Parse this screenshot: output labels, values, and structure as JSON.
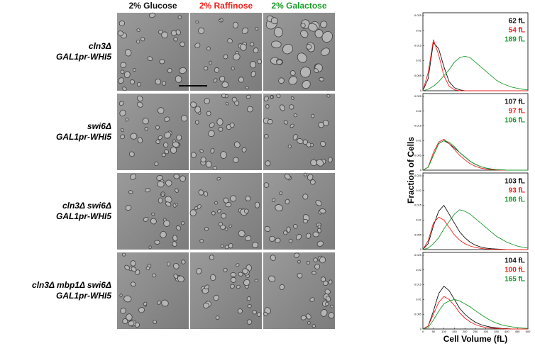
{
  "columns": [
    {
      "label": "2% Glucose",
      "color": "#111111"
    },
    {
      "label": "2% Raffinose",
      "color": "#e8231c"
    },
    {
      "label": "2% Galactose",
      "color": "#1a9a2a"
    }
  ],
  "rows": [
    {
      "lines": [
        "cln3Δ",
        "GAL1pr-WHI5"
      ]
    },
    {
      "lines": [
        "swi6Δ",
        "GAL1pr-WHI5"
      ]
    },
    {
      "lines": [
        "cln3Δ swi6Δ",
        "GAL1pr-WHI5"
      ]
    },
    {
      "lines": [
        "cln3Δ mbp1Δ swi6Δ",
        "GAL1pr-WHI5"
      ]
    }
  ],
  "y_axis_label": "Fraction of Cells",
  "x_axis_label": "Cell Volume (fL)",
  "chart_data": [
    {
      "type": "line",
      "x": [
        0,
        25,
        50,
        75,
        100,
        125,
        150,
        175,
        200,
        225,
        250,
        275,
        300,
        325,
        350,
        375,
        400,
        425,
        450,
        475,
        500
      ],
      "xlim": [
        0,
        500
      ],
      "ylim": [
        0,
        0.025
      ],
      "yticks": [
        0,
        0.005,
        0.01,
        0.015,
        0.02,
        0.025
      ],
      "series": [
        {
          "name": "62 fL",
          "color": "#111111",
          "values": [
            0,
            0.004,
            0.016,
            0.014,
            0.008,
            0.003,
            0.001,
            0.0003,
            0,
            0,
            0,
            0,
            0,
            0,
            0,
            0,
            0,
            0,
            0,
            0,
            0
          ]
        },
        {
          "name": "54 fL",
          "color": "#e8231c",
          "values": [
            0,
            0.006,
            0.017,
            0.012,
            0.005,
            0.0015,
            0.0003,
            0,
            0,
            0,
            0,
            0,
            0,
            0,
            0,
            0,
            0,
            0,
            0,
            0,
            0
          ]
        },
        {
          "name": "189 fL",
          "color": "#1a9a2a",
          "values": [
            0,
            0.0005,
            0.0015,
            0.003,
            0.005,
            0.007,
            0.0095,
            0.011,
            0.0115,
            0.011,
            0.0095,
            0.008,
            0.0065,
            0.005,
            0.0035,
            0.0025,
            0.0018,
            0.0012,
            0.0008,
            0.0005,
            0.0003
          ]
        }
      ]
    },
    {
      "type": "line",
      "x": [
        0,
        25,
        50,
        75,
        100,
        125,
        150,
        175,
        200,
        225,
        250,
        275,
        300,
        325,
        350,
        375,
        400,
        425,
        450,
        475,
        500
      ],
      "xlim": [
        0,
        500
      ],
      "ylim": [
        0,
        0.025
      ],
      "yticks": [
        0,
        0.005,
        0.01,
        0.015,
        0.02,
        0.025
      ],
      "series": [
        {
          "name": "107 fL",
          "color": "#111111",
          "values": [
            0,
            0.001,
            0.005,
            0.009,
            0.01,
            0.009,
            0.0075,
            0.006,
            0.0045,
            0.003,
            0.002,
            0.0012,
            0.0007,
            0.0004,
            0.0002,
            0.0001,
            0,
            0,
            0,
            0,
            0
          ]
        },
        {
          "name": "97 fL",
          "color": "#e8231c",
          "values": [
            0,
            0.001,
            0.006,
            0.0095,
            0.0105,
            0.009,
            0.007,
            0.005,
            0.0035,
            0.0022,
            0.0013,
            0.0007,
            0.0004,
            0.0002,
            0.0001,
            0,
            0,
            0,
            0,
            0,
            0
          ]
        },
        {
          "name": "106 fL",
          "color": "#1a9a2a",
          "values": [
            0,
            0.001,
            0.005,
            0.009,
            0.01,
            0.0095,
            0.008,
            0.006,
            0.0045,
            0.003,
            0.002,
            0.0012,
            0.0007,
            0.0004,
            0.0002,
            0.0001,
            0,
            0,
            0,
            0,
            0
          ]
        }
      ]
    },
    {
      "type": "line",
      "x": [
        0,
        25,
        50,
        75,
        100,
        125,
        150,
        175,
        200,
        225,
        250,
        275,
        300,
        325,
        350,
        375,
        400,
        425,
        450,
        475,
        500
      ],
      "xlim": [
        0,
        500
      ],
      "ylim": [
        0,
        0.025
      ],
      "yticks": [
        0,
        0.005,
        0.01,
        0.015,
        0.02,
        0.025
      ],
      "series": [
        {
          "name": "103 fL",
          "color": "#111111",
          "values": [
            0,
            0.002,
            0.008,
            0.013,
            0.015,
            0.012,
            0.009,
            0.006,
            0.004,
            0.0025,
            0.0015,
            0.0009,
            0.0005,
            0.0003,
            0.0002,
            0.0001,
            0,
            0,
            0,
            0,
            0
          ]
        },
        {
          "name": "93 fL",
          "color": "#e8231c",
          "values": [
            0,
            0.003,
            0.009,
            0.011,
            0.01,
            0.0075,
            0.005,
            0.0032,
            0.002,
            0.0012,
            0.0007,
            0.0004,
            0.0002,
            0.0001,
            0,
            0,
            0,
            0,
            0,
            0,
            0
          ]
        },
        {
          "name": "186 fL",
          "color": "#1a9a2a",
          "values": [
            0,
            0.0005,
            0.002,
            0.004,
            0.007,
            0.0095,
            0.012,
            0.0135,
            0.013,
            0.012,
            0.0105,
            0.009,
            0.0075,
            0.006,
            0.0045,
            0.0035,
            0.0025,
            0.0018,
            0.0012,
            0.0008,
            0.0005
          ]
        }
      ]
    },
    {
      "type": "line",
      "x": [
        0,
        25,
        50,
        75,
        100,
        125,
        150,
        175,
        200,
        225,
        250,
        275,
        300,
        325,
        350,
        375,
        400,
        425,
        450,
        475,
        500
      ],
      "xlim": [
        0,
        500
      ],
      "ylim": [
        0,
        0.025
      ],
      "yticks": [
        0,
        0.005,
        0.01,
        0.015,
        0.02,
        0.025
      ],
      "xticks": [
        0,
        50,
        100,
        150,
        200,
        250,
        300,
        350,
        400,
        450,
        500
      ],
      "series": [
        {
          "name": "104 fL",
          "color": "#111111",
          "values": [
            0,
            0.001,
            0.006,
            0.012,
            0.0145,
            0.013,
            0.01,
            0.007,
            0.005,
            0.0035,
            0.0023,
            0.0015,
            0.001,
            0.0006,
            0.0004,
            0.0002,
            0.0001,
            0,
            0,
            0,
            0
          ]
        },
        {
          "name": "100 fL",
          "color": "#e8231c",
          "values": [
            0,
            0.001,
            0.005,
            0.009,
            0.011,
            0.01,
            0.008,
            0.0055,
            0.0037,
            0.0024,
            0.0015,
            0.0009,
            0.0005,
            0.0003,
            0.0002,
            0.0001,
            0,
            0,
            0,
            0,
            0
          ]
        },
        {
          "name": "165 fL",
          "color": "#1a9a2a",
          "values": [
            0,
            0.0005,
            0.003,
            0.006,
            0.0085,
            0.0095,
            0.01,
            0.0095,
            0.0085,
            0.0075,
            0.0062,
            0.005,
            0.0038,
            0.0028,
            0.002,
            0.0014,
            0.001,
            0.0007,
            0.0005,
            0.0003,
            0.0002
          ]
        }
      ]
    }
  ]
}
